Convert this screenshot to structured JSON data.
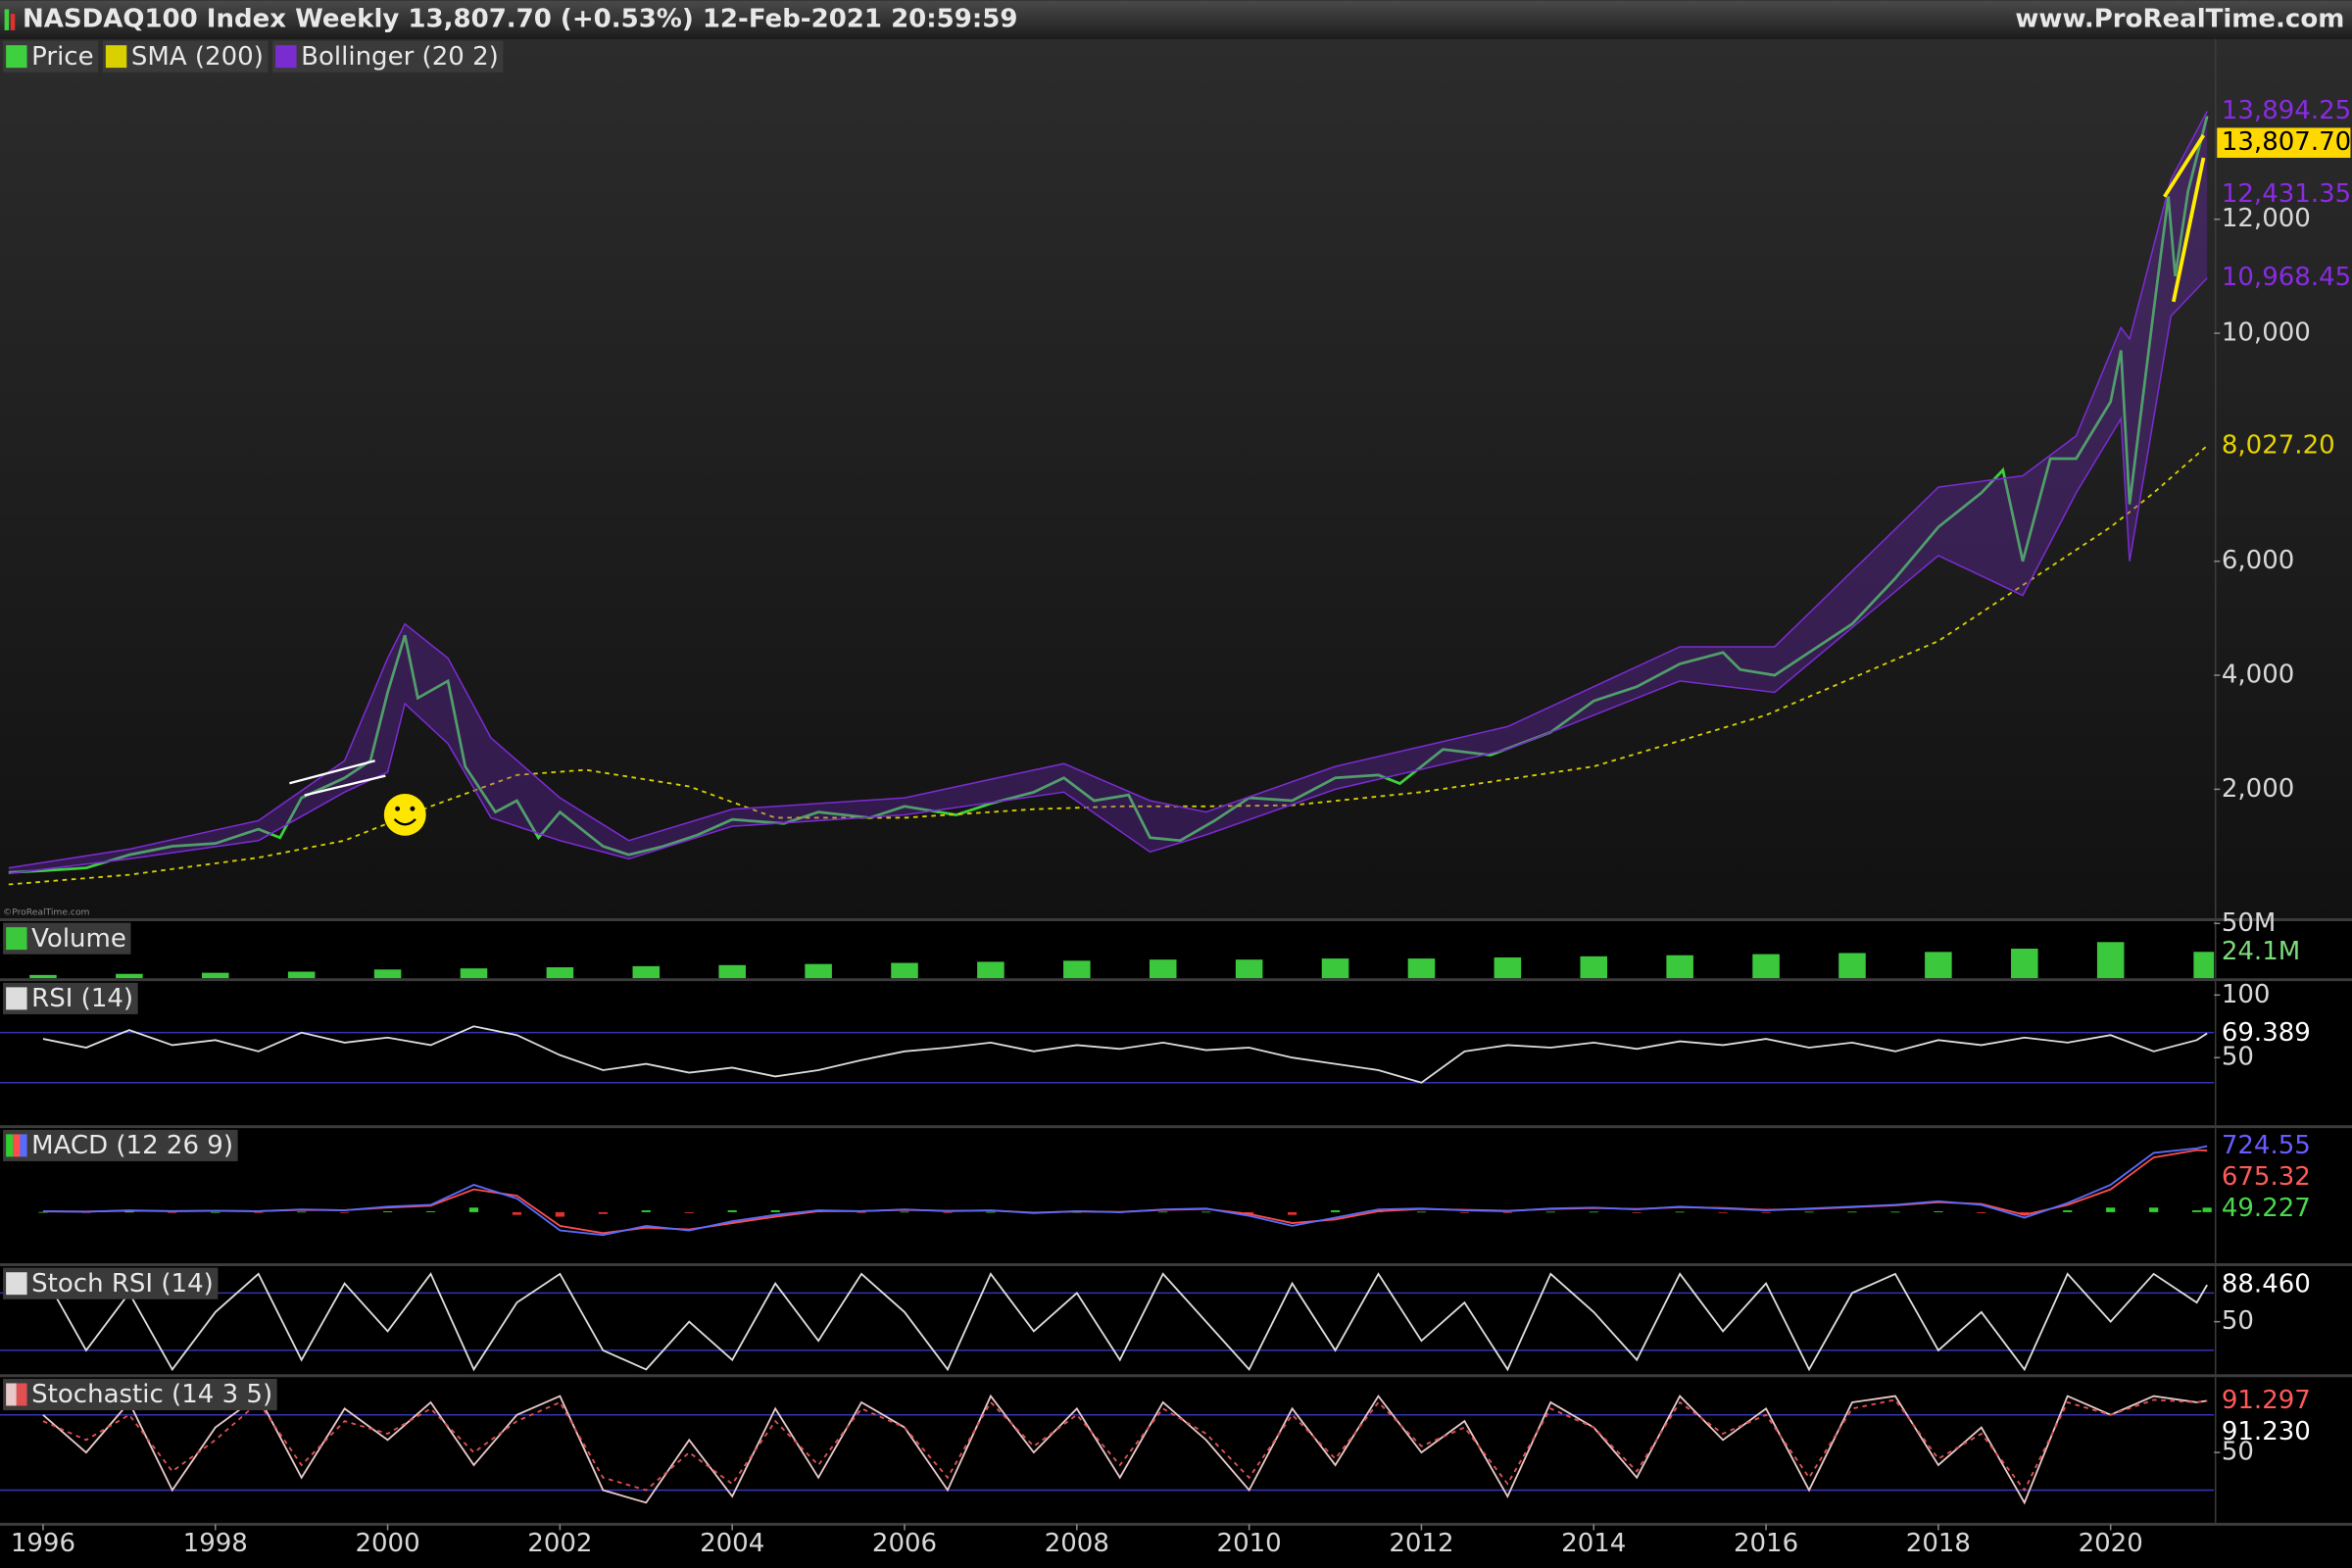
{
  "header": {
    "title": "NASDAQ100 Index Weekly 13,807.70 (+0.53%) 12-Feb-2021 20:59:59",
    "site": "www.ProRealTime.com"
  },
  "chart_data": [
    {
      "type": "line",
      "watermark": "©ProRealTime.com",
      "ylim": [
        -263,
        15158
      ],
      "yticks": [
        {
          "value": 2000,
          "label": "2,000"
        },
        {
          "value": 4000,
          "label": "4,000"
        },
        {
          "value": 6000,
          "label": "6,000"
        },
        {
          "value": 10000,
          "label": "10,000"
        },
        {
          "value": 12000,
          "label": "12,000"
        }
      ],
      "series": [
        {
          "name": "Price",
          "color": "#3fd03f",
          "x": [
            1995.6,
            1996.0,
            1996.5,
            1997.0,
            1997.5,
            1998.0,
            1998.5,
            1998.75,
            1999.0,
            1999.5,
            1999.8,
            2000.0,
            2000.2,
            2000.35,
            2000.7,
            2000.9,
            2001.25,
            2001.5,
            2001.75,
            2002.0,
            2002.5,
            2002.8,
            2003.2,
            2003.6,
            2004.0,
            2004.6,
            2005.0,
            2005.6,
            2006.0,
            2006.6,
            2007.0,
            2007.5,
            2007.85,
            2008.2,
            2008.6,
            2008.85,
            2009.2,
            2009.6,
            2010.0,
            2010.5,
            2011.0,
            2011.5,
            2011.75,
            2012.25,
            2012.8,
            2013.5,
            2014.0,
            2014.5,
            2015.0,
            2015.5,
            2015.7,
            2016.1,
            2016.5,
            2017.0,
            2017.5,
            2018.0,
            2018.5,
            2018.75,
            2018.98,
            2019.3,
            2019.6,
            2020.0,
            2020.12,
            2020.22,
            2020.5,
            2020.67,
            2020.75,
            2020.9,
            2021.12
          ],
          "values": [
            540,
            570,
            620,
            850,
            1000,
            1050,
            1300,
            1150,
            1850,
            2200,
            2500,
            3700,
            4700,
            3600,
            3900,
            2400,
            1600,
            1800,
            1150,
            1600,
            1000,
            850,
            1000,
            1200,
            1470,
            1400,
            1600,
            1500,
            1700,
            1550,
            1750,
            1950,
            2200,
            1800,
            1900,
            1150,
            1100,
            1450,
            1850,
            1800,
            2200,
            2250,
            2100,
            2700,
            2600,
            3000,
            3550,
            3800,
            4200,
            4400,
            4100,
            4000,
            4400,
            4900,
            5700,
            6600,
            7200,
            7600,
            6000,
            7800,
            7800,
            8800,
            9700,
            7000,
            10400,
            12400,
            11000,
            12500,
            13807.7
          ]
        },
        {
          "name": "SMA (200)",
          "color": "#d8d000",
          "dash": true,
          "x": [
            1995.6,
            1997,
            1998.5,
            1999.5,
            2000.5,
            2001.5,
            2002.3,
            2003.5,
            2004.5,
            2006,
            2007.5,
            2008.5,
            2009.5,
            2010.5,
            2012,
            2014,
            2016,
            2018,
            2019,
            2020,
            2020.5,
            2021.12
          ],
          "values": [
            330,
            500,
            800,
            1100,
            1700,
            2250,
            2340,
            2050,
            1500,
            1500,
            1650,
            1700,
            1700,
            1720,
            1950,
            2400,
            3300,
            4600,
            5600,
            6600,
            7200,
            8027.2
          ]
        },
        {
          "name": "Bollinger (20 2)",
          "color": "#7b2cd0",
          "x": [
            1995.6,
            1997.0,
            1998.5,
            1999.5,
            2000.0,
            2000.2,
            2000.7,
            2001.2,
            2002.0,
            2002.8,
            2004.0,
            2006.0,
            2007.85,
            2008.85,
            2009.5,
            2011.0,
            2013.0,
            2015.0,
            2016.1,
            2018.0,
            2018.98,
            2019.6,
            2020.12,
            2020.22,
            2020.7,
            2021.12
          ],
          "upper": [
            620,
            950,
            1450,
            2500,
            4300,
            4900,
            4300,
            2900,
            1850,
            1100,
            1650,
            1850,
            2450,
            1800,
            1600,
            2400,
            3100,
            4500,
            4500,
            7300,
            7500,
            8200,
            10100,
            9900,
            12700,
            13894.25
          ],
          "lower": [
            520,
            780,
            1100,
            1950,
            2300,
            3500,
            2800,
            1500,
            1100,
            780,
            1350,
            1550,
            1950,
            900,
            1200,
            2000,
            2700,
            3900,
            3700,
            6100,
            5400,
            7200,
            8500,
            6000,
            10300,
            10968.45
          ]
        }
      ],
      "last_labels": [
        {
          "value": 13894.25,
          "label": "13,894.25",
          "color": "#8a2be2"
        },
        {
          "value": 13807.7,
          "label": "13,807.70",
          "color": "#000000",
          "background": "#ffd800"
        },
        {
          "value": 12431.35,
          "label": "12,431.35",
          "color": "#8a2be2"
        },
        {
          "value": 10968.45,
          "label": "10,968.45",
          "color": "#8a2be2"
        },
        {
          "value": 8027.2,
          "label": "8,027.20",
          "color": "#e6d200"
        }
      ]
    },
    {
      "type": "bar",
      "title": "Volume",
      "ylim": [
        0,
        52000000
      ],
      "yticks": [
        {
          "value": 50000000,
          "label": "50M"
        }
      ],
      "x": [
        1996,
        1997,
        1998,
        1999,
        2000,
        2001,
        2002,
        2003,
        2004,
        2005,
        2006,
        2007,
        2008,
        2009,
        2010,
        2011,
        2012,
        2013,
        2014,
        2015,
        2016,
        2017,
        2018,
        2019,
        2020,
        2021.12
      ],
      "series": [
        {
          "color": "#3cc83c",
          "values": [
            3000000,
            4000000,
            5000000,
            6000000,
            8000000,
            9000000,
            10000000,
            11000000,
            12000000,
            13000000,
            14000000,
            15000000,
            16000000,
            17000000,
            17000000,
            18000000,
            18000000,
            19000000,
            20000000,
            21000000,
            22000000,
            23000000,
            24000000,
            27000000,
            33000000,
            24100000
          ]
        }
      ],
      "last_labels": [
        {
          "value": 24100000,
          "label": "24.1M",
          "color": "#7cdc7c"
        }
      ]
    },
    {
      "type": "line",
      "title": "RSI (14)",
      "ylim": [
        -4,
        111
      ],
      "yticks": [
        100,
        50
      ],
      "levels": [
        70,
        30
      ],
      "x": [
        1996,
        1996.5,
        1997,
        1997.5,
        1998,
        1998.5,
        1999,
        1999.5,
        2000,
        2000.5,
        2001,
        2001.5,
        2002,
        2002.5,
        2003,
        2003.5,
        2004,
        2004.5,
        2005,
        2005.5,
        2006,
        2006.5,
        2007,
        2007.5,
        2008,
        2008.5,
        2009,
        2009.5,
        2010,
        2010.5,
        2011,
        2011.5,
        2012,
        2012.5,
        2013,
        2013.5,
        2014,
        2014.5,
        2015,
        2015.5,
        2016,
        2016.5,
        2017,
        2017.5,
        2018,
        2018.5,
        2019,
        2019.5,
        2020,
        2020.5,
        2021,
        2021.12
      ],
      "series": [
        {
          "color": "#dddddd",
          "values": [
            65,
            58,
            72,
            60,
            64,
            55,
            70,
            62,
            66,
            60,
            75,
            68,
            52,
            40,
            45,
            38,
            42,
            35,
            40,
            48,
            55,
            58,
            62,
            55,
            60,
            57,
            62,
            56,
            58,
            50,
            45,
            40,
            30,
            55,
            60,
            58,
            62,
            57,
            63,
            60,
            65,
            58,
            62,
            55,
            64,
            60,
            66,
            62,
            68,
            55,
            64,
            69.389
          ]
        }
      ],
      "last_labels": [
        {
          "value": 69.389,
          "label": "69.389",
          "color": "#ffffff"
        }
      ]
    },
    {
      "type": "line",
      "title": "MACD (12 26 9)",
      "ylim": [
        -560,
        920
      ],
      "x": [
        1996,
        1996.5,
        1997,
        1997.5,
        1998,
        1998.5,
        1999,
        1999.5,
        2000,
        2000.5,
        2001,
        2001.5,
        2002,
        2002.5,
        2003,
        2003.5,
        2004,
        2004.5,
        2005,
        2005.5,
        2006,
        2006.5,
        2007,
        2007.5,
        2008,
        2008.5,
        2009,
        2009.5,
        2010,
        2010.5,
        2011,
        2011.5,
        2012,
        2012.5,
        2013,
        2013.5,
        2014,
        2014.5,
        2015,
        2015.5,
        2016,
        2016.5,
        2017,
        2017.5,
        2018,
        2018.5,
        2019,
        2019.5,
        2020,
        2020.5,
        2021,
        2021.12
      ],
      "series": [
        {
          "type": "bar",
          "color": "#2fd12f",
          "negative_color": "#e03030",
          "values": [
            2,
            -1,
            5,
            -2,
            1,
            -1,
            5,
            -2,
            10,
            10,
            50,
            -30,
            -50,
            -20,
            20,
            -10,
            20,
            20,
            10,
            -2,
            5,
            -5,
            2,
            -5,
            2,
            -2,
            5,
            5,
            -20,
            -30,
            20,
            20,
            5,
            -5,
            -5,
            5,
            5,
            -5,
            5,
            -5,
            -5,
            5,
            5,
            5,
            10,
            -10,
            -30,
            20,
            50,
            50,
            20,
            49.227
          ]
        },
        {
          "color": "#ff4d4d",
          "values": [
            8,
            6,
            15,
            12,
            14,
            11,
            25,
            22,
            50,
            70,
            250,
            180,
            -150,
            -230,
            -170,
            -190,
            -120,
            -50,
            10,
            12,
            25,
            15,
            18,
            -5,
            8,
            2,
            25,
            35,
            -20,
            -120,
            -80,
            10,
            35,
            25,
            15,
            35,
            45,
            35,
            55,
            45,
            25,
            35,
            55,
            75,
            110,
            90,
            -30,
            80,
            250,
            600,
            680,
            675.32
          ]
        },
        {
          "color": "#5a6cff",
          "values": [
            10,
            5,
            20,
            10,
            15,
            10,
            30,
            20,
            60,
            80,
            300,
            150,
            -200,
            -250,
            -150,
            -200,
            -100,
            -30,
            20,
            10,
            30,
            10,
            20,
            -10,
            10,
            0,
            30,
            40,
            -40,
            -150,
            -60,
            30,
            40,
            20,
            10,
            40,
            50,
            30,
            60,
            40,
            20,
            40,
            60,
            80,
            120,
            80,
            -60,
            100,
            300,
            650,
            700,
            724.55
          ]
        }
      ],
      "last_labels": [
        {
          "value": 724.55,
          "label": "724.55",
          "color": "#6a5cff"
        },
        {
          "value": 675.32,
          "label": "675.32",
          "color": "#ff5a5a"
        },
        {
          "value": 49.227,
          "label": "49.227",
          "color": "#4cd84c"
        }
      ]
    },
    {
      "type": "line",
      "title": "Stoch RSI (14)",
      "ylim": [
        -5,
        108
      ],
      "yticks": [
        50
      ],
      "levels": [
        80,
        20
      ],
      "x": [
        1996,
        1996.5,
        1997,
        1997.5,
        1998,
        1998.5,
        1999,
        1999.5,
        2000,
        2000.5,
        2001,
        2001.5,
        2002,
        2002.5,
        2003,
        2003.5,
        2004,
        2004.5,
        2005,
        2005.5,
        2006,
        2006.5,
        2007,
        2007.5,
        2008,
        2008.5,
        2009,
        2009.5,
        2010,
        2010.5,
        2011,
        2011.5,
        2012,
        2012.5,
        2013,
        2013.5,
        2014,
        2014.5,
        2015,
        2015.5,
        2016,
        2016.5,
        2017,
        2017.5,
        2018,
        2018.5,
        2019,
        2019.5,
        2020,
        2020.5,
        2021,
        2021.12
      ],
      "series": [
        {
          "color": "#dddddd",
          "values": [
            100,
            20,
            80,
            0,
            60,
            100,
            10,
            90,
            40,
            100,
            0,
            70,
            100,
            20,
            0,
            50,
            10,
            90,
            30,
            100,
            60,
            0,
            100,
            40,
            80,
            10,
            100,
            50,
            0,
            90,
            20,
            100,
            30,
            70,
            0,
            100,
            60,
            10,
            100,
            40,
            90,
            0,
            80,
            100,
            20,
            60,
            0,
            100,
            50,
            100,
            70,
            88.46
          ]
        }
      ],
      "last_labels": [
        {
          "value": 88.46,
          "label": "88.460",
          "color": "#ffffff"
        }
      ]
    },
    {
      "type": "line",
      "title": "Stochastic (14 3 5)",
      "ylim": [
        -6,
        110
      ],
      "yticks": [
        50
      ],
      "levels": [
        80,
        20
      ],
      "xlim": [
        1995.5,
        2021.2
      ],
      "xticks": [
        1996,
        1998,
        2000,
        2002,
        2004,
        2006,
        2008,
        2010,
        2012,
        2014,
        2016,
        2018,
        2020
      ],
      "x": [
        1996,
        1996.5,
        1997,
        1997.5,
        1998,
        1998.5,
        1999,
        1999.5,
        2000,
        2000.5,
        2001,
        2001.5,
        2002,
        2002.5,
        2003,
        2003.5,
        2004,
        2004.5,
        2005,
        2005.5,
        2006,
        2006.5,
        2007,
        2007.5,
        2008,
        2008.5,
        2009,
        2009.5,
        2010,
        2010.5,
        2011,
        2011.5,
        2012,
        2012.5,
        2013,
        2013.5,
        2014,
        2014.5,
        2015,
        2015.5,
        2016,
        2016.5,
        2017,
        2017.5,
        2018,
        2018.5,
        2019,
        2019.5,
        2020,
        2020.5,
        2021,
        2021.12
      ],
      "series": [
        {
          "color": "#e8c8c8",
          "values": [
            80,
            50,
            90,
            20,
            70,
            95,
            30,
            85,
            60,
            90,
            40,
            80,
            95,
            20,
            10,
            60,
            15,
            85,
            30,
            90,
            70,
            20,
            95,
            50,
            85,
            30,
            90,
            60,
            20,
            85,
            40,
            95,
            50,
            75,
            15,
            90,
            70,
            30,
            95,
            60,
            85,
            20,
            90,
            95,
            40,
            70,
            10,
            95,
            80,
            95,
            90,
            91.23
          ]
        },
        {
          "color": "#e05050",
          "dash": true,
          "values": [
            75,
            60,
            80,
            35,
            60,
            90,
            40,
            75,
            65,
            85,
            50,
            75,
            90,
            30,
            20,
            50,
            25,
            75,
            40,
            85,
            70,
            30,
            90,
            55,
            80,
            40,
            85,
            65,
            30,
            80,
            45,
            90,
            55,
            70,
            25,
            85,
            70,
            35,
            90,
            65,
            80,
            30,
            85,
            92,
            45,
            65,
            20,
            90,
            80,
            92,
            90,
            91.297
          ]
        }
      ],
      "last_labels": [
        {
          "value": 91.297,
          "label": "91.297",
          "color": "#ff5a5a"
        },
        {
          "value": 91.23,
          "label": "91.230",
          "color": "#ffffff"
        }
      ]
    }
  ]
}
